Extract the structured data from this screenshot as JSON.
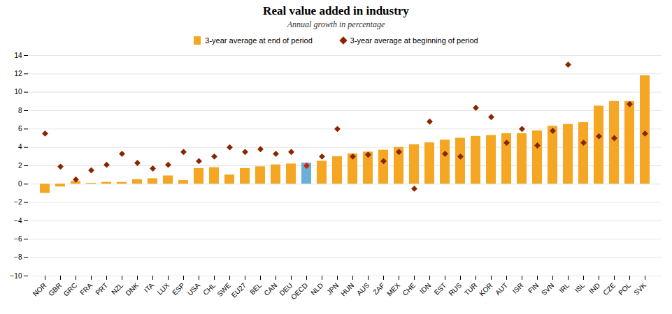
{
  "chart_data": {
    "type": "bar",
    "title": "Real value added in industry",
    "subtitle": "Annual growth in percentage",
    "categories": [
      "NOR",
      "GBR",
      "GRC",
      "FRA",
      "PRT",
      "NZL",
      "DNK",
      "ITA",
      "LUX",
      "ESP",
      "USA",
      "CHL",
      "SWE",
      "EU27",
      "BEL",
      "CAN",
      "DEU",
      "OECD",
      "NLD",
      "JPN",
      "HUN",
      "AUS",
      "ZAF",
      "MEX",
      "CHE",
      "IDN",
      "EST",
      "RUS",
      "TUR",
      "KOR",
      "AUT",
      "ISR",
      "FIN",
      "SVN",
      "IRL",
      "ISL",
      "IND",
      "CZE",
      "POL",
      "SVK"
    ],
    "series": [
      {
        "name": "3-year average at end of period",
        "type": "bar",
        "color": "#f5a623",
        "colors": [
          "#f5a623",
          "#f5a623",
          "#f5a623",
          "#f5a623",
          "#f5a623",
          "#f5a623",
          "#f5a623",
          "#f5a623",
          "#f5a623",
          "#f5a623",
          "#f5a623",
          "#f5a623",
          "#f5a623",
          "#f5a623",
          "#f5a623",
          "#f5a623",
          "#f5a623",
          "#6baed6",
          "#f5a623",
          "#f5a623",
          "#f5a623",
          "#f5a623",
          "#f5a623",
          "#f5a623",
          "#f5a623",
          "#f5a623",
          "#f5a623",
          "#f5a623",
          "#f5a623",
          "#f5a623",
          "#f5a623",
          "#f5a623",
          "#f5a623",
          "#f5a623",
          "#f5a623",
          "#f5a623",
          "#f5a623",
          "#f5a623",
          "#f5a623",
          "#f5a623"
        ],
        "values": [
          -1.0,
          -0.3,
          0.3,
          0.1,
          0.2,
          0.2,
          0.5,
          0.6,
          0.9,
          0.4,
          1.7,
          1.8,
          1.0,
          1.7,
          1.9,
          2.1,
          2.2,
          2.3,
          2.5,
          3.0,
          3.3,
          3.5,
          3.7,
          4.0,
          4.3,
          4.5,
          4.8,
          5.0,
          5.2,
          5.3,
          5.5,
          5.5,
          5.8,
          6.3,
          6.5,
          6.7,
          8.5,
          9.0,
          9.0,
          11.8
        ]
      },
      {
        "name": "3-year average at beginning of period",
        "type": "scatter",
        "marker": "diamond",
        "color": "#8b2500",
        "colors": [
          "#8b2500",
          "#8b2500",
          "#8b2500",
          "#8b2500",
          "#8b2500",
          "#8b2500",
          "#8b2500",
          "#8b2500",
          "#8b2500",
          "#8b2500",
          "#8b2500",
          "#8b2500",
          "#8b2500",
          "#8b2500",
          "#8b2500",
          "#8b2500",
          "#8b2500",
          "#cc2200",
          "#8b2500",
          "#8b2500",
          "#8b2500",
          "#8b2500",
          "#8b2500",
          "#8b2500",
          "#8b2500",
          "#8b2500",
          "#8b2500",
          "#8b2500",
          "#8b2500",
          "#8b2500",
          "#8b2500",
          "#8b2500",
          "#8b2500",
          "#8b2500",
          "#8b2500",
          "#8b2500",
          "#8b2500",
          "#8b2500",
          "#8b2500",
          "#8b2500"
        ],
        "values": [
          5.5,
          1.9,
          0.5,
          1.5,
          2.1,
          3.3,
          2.3,
          1.7,
          2.1,
          3.5,
          2.5,
          3.0,
          4.0,
          3.5,
          3.8,
          3.3,
          3.5,
          2.0,
          3.0,
          6.0,
          3.0,
          3.2,
          2.5,
          3.5,
          -0.5,
          6.8,
          3.3,
          3.0,
          8.3,
          7.3,
          4.5,
          6.0,
          4.2,
          5.8,
          13.0,
          4.5,
          5.2,
          5.0,
          8.7,
          5.5
        ]
      }
    ],
    "ylim": [
      -10,
      14
    ],
    "yticks": [
      -10,
      -8,
      -6,
      -4,
      -2,
      0,
      2,
      4,
      6,
      8,
      10,
      12,
      14
    ],
    "grid": true,
    "legend": "top"
  }
}
